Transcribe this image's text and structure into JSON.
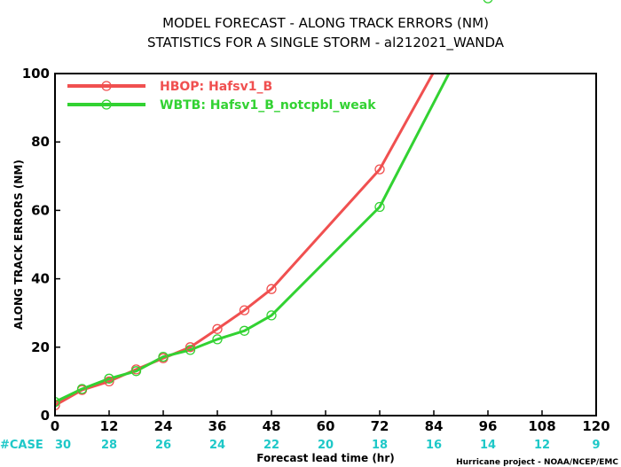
{
  "chart_data": {
    "type": "line",
    "title_line1": "MODEL FORECAST - ALONG TRACK ERRORS (NM)",
    "title_line2": "STATISTICS FOR A SINGLE STORM - al212021_WANDA",
    "xlabel": "Forecast lead time (hr)",
    "ylabel": "ALONG TRACK ERRORS (NM)",
    "xlim": [
      0,
      120
    ],
    "ylim": [
      0,
      100
    ],
    "xticks": [
      "0",
      "12",
      "24",
      "36",
      "48",
      "60",
      "72",
      "84",
      "96",
      "108",
      "120"
    ],
    "yticks": [
      "0",
      "20",
      "40",
      "60",
      "80",
      "100"
    ],
    "grid": false,
    "legend_position": "top-left",
    "case_label": "#CASE",
    "case_counts": [
      "30",
      "28",
      "26",
      "24",
      "22",
      "20",
      "18",
      "16",
      "14",
      "12",
      "9"
    ],
    "credit": "Hurricane project - NOAA/NCEP/EMC",
    "series": [
      {
        "name": "HBOP: Hafsv1_B",
        "color": "#f05050",
        "x": [
          0,
          6,
          12,
          18,
          24,
          30,
          36,
          42,
          48,
          72,
          84,
          96
        ],
        "y": [
          3,
          7.5,
          10,
          13.5,
          16.8,
          20,
          25.3,
          30.8,
          37,
          72,
          100.5,
          132
        ],
        "markers": [
          0,
          6,
          12,
          18,
          24,
          30,
          36,
          42,
          48,
          72
        ]
      },
      {
        "name": "WBTB: Hafsv1_B_notcpbl_weak",
        "color": "#32d232",
        "x": [
          0,
          6,
          12,
          18,
          24,
          30,
          36,
          42,
          48,
          72,
          84,
          96
        ],
        "y": [
          4,
          7.8,
          10.8,
          13,
          17.2,
          19.2,
          22.3,
          24.8,
          29.3,
          61,
          91.5,
          122
        ],
        "markers": [
          0,
          6,
          12,
          18,
          24,
          30,
          36,
          42,
          48,
          72,
          96
        ]
      }
    ]
  }
}
